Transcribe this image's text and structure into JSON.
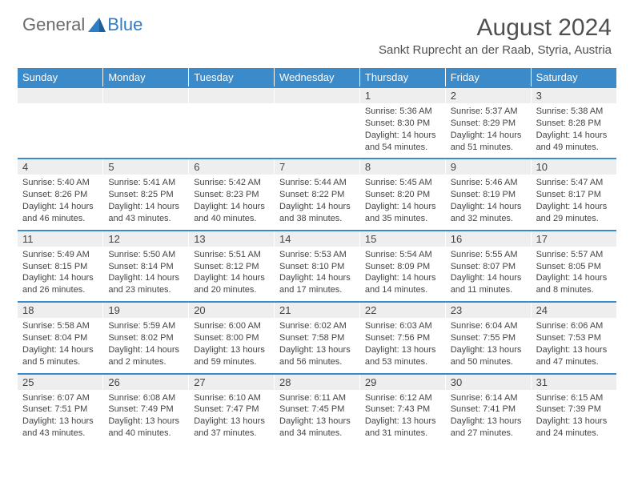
{
  "brand": {
    "part1": "General",
    "part2": "Blue"
  },
  "title": "August 2024",
  "location": "Sankt Ruprecht an der Raab, Styria, Austria",
  "colors": {
    "header_blue": "#3b8aca",
    "daynum_bg": "#eeeeee",
    "text": "#444444",
    "title_text": "#505050",
    "logo_gray": "#6a6a6a",
    "logo_blue": "#2f7dc4",
    "bg": "#ffffff"
  },
  "dow": [
    "Sunday",
    "Monday",
    "Tuesday",
    "Wednesday",
    "Thursday",
    "Friday",
    "Saturday"
  ],
  "weeks": [
    [
      null,
      null,
      null,
      null,
      {
        "n": "1",
        "sr": "Sunrise: 5:36 AM",
        "ss": "Sunset: 8:30 PM",
        "dl": "Daylight: 14 hours and 54 minutes."
      },
      {
        "n": "2",
        "sr": "Sunrise: 5:37 AM",
        "ss": "Sunset: 8:29 PM",
        "dl": "Daylight: 14 hours and 51 minutes."
      },
      {
        "n": "3",
        "sr": "Sunrise: 5:38 AM",
        "ss": "Sunset: 8:28 PM",
        "dl": "Daylight: 14 hours and 49 minutes."
      }
    ],
    [
      {
        "n": "4",
        "sr": "Sunrise: 5:40 AM",
        "ss": "Sunset: 8:26 PM",
        "dl": "Daylight: 14 hours and 46 minutes."
      },
      {
        "n": "5",
        "sr": "Sunrise: 5:41 AM",
        "ss": "Sunset: 8:25 PM",
        "dl": "Daylight: 14 hours and 43 minutes."
      },
      {
        "n": "6",
        "sr": "Sunrise: 5:42 AM",
        "ss": "Sunset: 8:23 PM",
        "dl": "Daylight: 14 hours and 40 minutes."
      },
      {
        "n": "7",
        "sr": "Sunrise: 5:44 AM",
        "ss": "Sunset: 8:22 PM",
        "dl": "Daylight: 14 hours and 38 minutes."
      },
      {
        "n": "8",
        "sr": "Sunrise: 5:45 AM",
        "ss": "Sunset: 8:20 PM",
        "dl": "Daylight: 14 hours and 35 minutes."
      },
      {
        "n": "9",
        "sr": "Sunrise: 5:46 AM",
        "ss": "Sunset: 8:19 PM",
        "dl": "Daylight: 14 hours and 32 minutes."
      },
      {
        "n": "10",
        "sr": "Sunrise: 5:47 AM",
        "ss": "Sunset: 8:17 PM",
        "dl": "Daylight: 14 hours and 29 minutes."
      }
    ],
    [
      {
        "n": "11",
        "sr": "Sunrise: 5:49 AM",
        "ss": "Sunset: 8:15 PM",
        "dl": "Daylight: 14 hours and 26 minutes."
      },
      {
        "n": "12",
        "sr": "Sunrise: 5:50 AM",
        "ss": "Sunset: 8:14 PM",
        "dl": "Daylight: 14 hours and 23 minutes."
      },
      {
        "n": "13",
        "sr": "Sunrise: 5:51 AM",
        "ss": "Sunset: 8:12 PM",
        "dl": "Daylight: 14 hours and 20 minutes."
      },
      {
        "n": "14",
        "sr": "Sunrise: 5:53 AM",
        "ss": "Sunset: 8:10 PM",
        "dl": "Daylight: 14 hours and 17 minutes."
      },
      {
        "n": "15",
        "sr": "Sunrise: 5:54 AM",
        "ss": "Sunset: 8:09 PM",
        "dl": "Daylight: 14 hours and 14 minutes."
      },
      {
        "n": "16",
        "sr": "Sunrise: 5:55 AM",
        "ss": "Sunset: 8:07 PM",
        "dl": "Daylight: 14 hours and 11 minutes."
      },
      {
        "n": "17",
        "sr": "Sunrise: 5:57 AM",
        "ss": "Sunset: 8:05 PM",
        "dl": "Daylight: 14 hours and 8 minutes."
      }
    ],
    [
      {
        "n": "18",
        "sr": "Sunrise: 5:58 AM",
        "ss": "Sunset: 8:04 PM",
        "dl": "Daylight: 14 hours and 5 minutes."
      },
      {
        "n": "19",
        "sr": "Sunrise: 5:59 AM",
        "ss": "Sunset: 8:02 PM",
        "dl": "Daylight: 14 hours and 2 minutes."
      },
      {
        "n": "20",
        "sr": "Sunrise: 6:00 AM",
        "ss": "Sunset: 8:00 PM",
        "dl": "Daylight: 13 hours and 59 minutes."
      },
      {
        "n": "21",
        "sr": "Sunrise: 6:02 AM",
        "ss": "Sunset: 7:58 PM",
        "dl": "Daylight: 13 hours and 56 minutes."
      },
      {
        "n": "22",
        "sr": "Sunrise: 6:03 AM",
        "ss": "Sunset: 7:56 PM",
        "dl": "Daylight: 13 hours and 53 minutes."
      },
      {
        "n": "23",
        "sr": "Sunrise: 6:04 AM",
        "ss": "Sunset: 7:55 PM",
        "dl": "Daylight: 13 hours and 50 minutes."
      },
      {
        "n": "24",
        "sr": "Sunrise: 6:06 AM",
        "ss": "Sunset: 7:53 PM",
        "dl": "Daylight: 13 hours and 47 minutes."
      }
    ],
    [
      {
        "n": "25",
        "sr": "Sunrise: 6:07 AM",
        "ss": "Sunset: 7:51 PM",
        "dl": "Daylight: 13 hours and 43 minutes."
      },
      {
        "n": "26",
        "sr": "Sunrise: 6:08 AM",
        "ss": "Sunset: 7:49 PM",
        "dl": "Daylight: 13 hours and 40 minutes."
      },
      {
        "n": "27",
        "sr": "Sunrise: 6:10 AM",
        "ss": "Sunset: 7:47 PM",
        "dl": "Daylight: 13 hours and 37 minutes."
      },
      {
        "n": "28",
        "sr": "Sunrise: 6:11 AM",
        "ss": "Sunset: 7:45 PM",
        "dl": "Daylight: 13 hours and 34 minutes."
      },
      {
        "n": "29",
        "sr": "Sunrise: 6:12 AM",
        "ss": "Sunset: 7:43 PM",
        "dl": "Daylight: 13 hours and 31 minutes."
      },
      {
        "n": "30",
        "sr": "Sunrise: 6:14 AM",
        "ss": "Sunset: 7:41 PM",
        "dl": "Daylight: 13 hours and 27 minutes."
      },
      {
        "n": "31",
        "sr": "Sunrise: 6:15 AM",
        "ss": "Sunset: 7:39 PM",
        "dl": "Daylight: 13 hours and 24 minutes."
      }
    ]
  ]
}
